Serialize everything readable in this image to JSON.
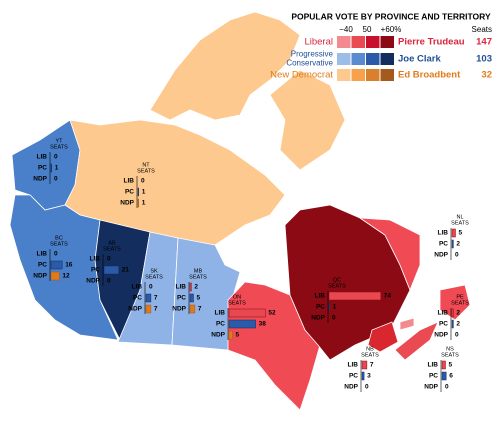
{
  "legend": {
    "title": "POPULAR VOTE BY PROVINCE AND TERRITORY",
    "seats_header": "Seats",
    "scale_labels": [
      "−40",
      "50",
      "+60%"
    ],
    "parties": [
      {
        "name": [
          "Liberal"
        ],
        "leader": "Pierre Trudeau",
        "seats": 147,
        "color": "#d7263d",
        "swatches": [
          "#f28a8f",
          "#ea4a52",
          "#c8102e",
          "#8b0a14"
        ]
      },
      {
        "name": [
          "Progressive",
          "Conservative"
        ],
        "leader": "Joe Clark",
        "seats": 103,
        "color": "#1f4e99",
        "swatches": [
          "#9dbde9",
          "#5a8ad0",
          "#2a5aa8",
          "#132d5e"
        ]
      },
      {
        "name": [
          "New Democrat"
        ],
        "leader": "Ed Broadbent",
        "seats": 32,
        "color": "#e07b1a",
        "swatches": [
          "#fdc98e",
          "#f7a24a",
          "#d9802e",
          "#a45a1c"
        ]
      }
    ]
  },
  "regions": [
    {
      "name": "YT",
      "seats_label": "SEATS",
      "rows": [
        {
          "party": "LIB",
          "seats": 0
        },
        {
          "party": "PC",
          "seats": 1
        },
        {
          "party": "NDP",
          "seats": 0
        }
      ]
    },
    {
      "name": "NT",
      "seats_label": "SEATS",
      "rows": [
        {
          "party": "LIB",
          "seats": 0
        },
        {
          "party": "PC",
          "seats": 1
        },
        {
          "party": "NDP",
          "seats": 1
        }
      ]
    },
    {
      "name": "BC",
      "seats_label": "SEATS",
      "rows": [
        {
          "party": "LIB",
          "seats": 0
        },
        {
          "party": "PC",
          "seats": 16
        },
        {
          "party": "NDP",
          "seats": 12
        }
      ]
    },
    {
      "name": "AB",
      "seats_label": "SEATS",
      "rows": [
        {
          "party": "LIB",
          "seats": 0
        },
        {
          "party": "PC",
          "seats": 21
        },
        {
          "party": "NDP",
          "seats": 0
        }
      ]
    },
    {
      "name": "SK",
      "seats_label": "SEATS",
      "rows": [
        {
          "party": "LIB",
          "seats": 0
        },
        {
          "party": "PC",
          "seats": 7
        },
        {
          "party": "NDP",
          "seats": 7
        }
      ]
    },
    {
      "name": "MB",
      "seats_label": "SEATS",
      "rows": [
        {
          "party": "LIB",
          "seats": 2
        },
        {
          "party": "PC",
          "seats": 5
        },
        {
          "party": "NDP",
          "seats": 7
        }
      ]
    },
    {
      "name": "ON",
      "seats_label": "SEATS",
      "rows": [
        {
          "party": "LIB",
          "seats": 52
        },
        {
          "party": "PC",
          "seats": 38
        },
        {
          "party": "NDP",
          "seats": 5
        }
      ]
    },
    {
      "name": "QC",
      "seats_label": "SEATS",
      "rows": [
        {
          "party": "LIB",
          "seats": 74
        },
        {
          "party": "PC",
          "seats": 1
        },
        {
          "party": "NDP",
          "seats": 0
        }
      ]
    },
    {
      "name": "NL",
      "seats_label": "SEATS",
      "rows": [
        {
          "party": "LIB",
          "seats": 5
        },
        {
          "party": "PC",
          "seats": 2
        },
        {
          "party": "NDP",
          "seats": 0
        }
      ]
    },
    {
      "name": "PE",
      "seats_label": "SEATS",
      "rows": [
        {
          "party": "LIB",
          "seats": 2
        },
        {
          "party": "PC",
          "seats": 2
        },
        {
          "party": "NDP",
          "seats": 0
        }
      ]
    },
    {
      "name": "NB",
      "seats_label": "SEATS",
      "rows": [
        {
          "party": "LIB",
          "seats": 7
        },
        {
          "party": "PC",
          "seats": 3
        },
        {
          "party": "NDP",
          "seats": 0
        }
      ]
    },
    {
      "name": "NS",
      "seats_label": "SEATS",
      "rows": [
        {
          "party": "LIB",
          "seats": 5
        },
        {
          "party": "PC",
          "seats": 6
        },
        {
          "party": "NDP",
          "seats": 0
        }
      ]
    }
  ]
}
